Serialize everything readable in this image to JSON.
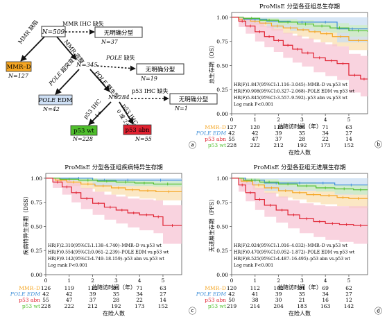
{
  "palette": {
    "mmr_d": "#f5a623",
    "pole": "#3f8fd8",
    "p53abn": "#e02130",
    "p53wt": "#4fbf2c",
    "ci_mmr_d": "#f9dfb0",
    "ci_pole": "#c9def2",
    "ci_p53abn": "#f7c4d4",
    "ci_p53wt": "#cdeec1",
    "edm_fill": "#cfe0f5",
    "mmrd_fill": "#f5a623",
    "wt_fill": "#4fbf2c",
    "abn_fill": "#e02130"
  },
  "panel_letters": {
    "a": "ⓐ",
    "b": "ⓑ",
    "c": "ⓒ",
    "d": "ⓓ"
  },
  "flow": {
    "n509": "N=509",
    "mmr_missing": "MMR IHC 缺失",
    "unclass": "无明确分型",
    "n37": "N=37",
    "mmr_loss": "MMR 缺陷",
    "mmrd_box": "MMR–D",
    "n127": "N=127",
    "mmr_intact": "MMR 完整",
    "n345": "N=345",
    "pole_missing": "POLE 缺失",
    "n19": "N=19",
    "pole_mut": "POLE 超突变",
    "pole_wt": "POLE 野生型",
    "pole_box_a": "POLE",
    "pole_box_b": " EDM",
    "n42": "N=42",
    "n284": "N=284",
    "p53_missing": "p53 IHC 缺失",
    "n1": "N=1",
    "p53_ihc": "p53 IHC",
    "p53_ihc_sub": "0 或 2+",
    "p53_ihc_1": "1+",
    "p53wt_box": "p53 wt",
    "n228": "N=228",
    "p53abn_box": "p53 abn",
    "n55": "N=55"
  },
  "risk_legend": {
    "mmr_d": "MMR–D",
    "pole": "POLE EDM",
    "p53abn": "p53 abn",
    "p53wt": "p53 wt"
  },
  "chart_data": [
    {
      "id": "b",
      "type": "line",
      "title": "ProMisE 分型各亚组总生存期",
      "ylabel": "总生存期（OS）",
      "xlabel": "总随访时间（年）",
      "xticks": [
        0,
        1,
        2,
        3,
        4,
        5
      ],
      "yticks": [
        0.0,
        0.25,
        0.5,
        0.75,
        1.0
      ],
      "xlim": [
        0,
        5.8
      ],
      "ylim": [
        0,
        1.05
      ],
      "series": [
        {
          "name": "MMR–D",
          "key": "mmr_d",
          "x": [
            0,
            0.3,
            0.8,
            1.2,
            1.7,
            2.2,
            2.8,
            3.3,
            3.8,
            4.3,
            5.0,
            5.8
          ],
          "y": [
            1.0,
            0.98,
            0.96,
            0.94,
            0.91,
            0.89,
            0.87,
            0.85,
            0.83,
            0.8,
            0.76,
            0.75
          ],
          "ci_lo": [
            1.0,
            0.95,
            0.92,
            0.9,
            0.86,
            0.83,
            0.8,
            0.77,
            0.74,
            0.7,
            0.66,
            0.64
          ],
          "ci_hi": [
            1.0,
            1.0,
            0.99,
            0.98,
            0.96,
            0.94,
            0.93,
            0.92,
            0.91,
            0.89,
            0.86,
            0.86
          ]
        },
        {
          "name": "POLE EDM",
          "key": "pole",
          "x": [
            0,
            0.5,
            1.5,
            2.5,
            3.5,
            4.5,
            5.8
          ],
          "y": [
            1.0,
            0.98,
            0.96,
            0.95,
            0.95,
            0.88,
            0.88
          ],
          "ci_lo": [
            1.0,
            0.93,
            0.89,
            0.86,
            0.85,
            0.74,
            0.74
          ],
          "ci_hi": [
            1.0,
            1.0,
            1.0,
            1.0,
            1.0,
            1.0,
            1.0
          ]
        },
        {
          "name": "p53 wt",
          "key": "p53wt",
          "x": [
            0,
            0.5,
            1.2,
            2.0,
            2.8,
            3.5,
            4.2,
            5.0,
            5.8
          ],
          "y": [
            1.0,
            0.99,
            0.97,
            0.95,
            0.93,
            0.91,
            0.89,
            0.86,
            0.85
          ],
          "ci_lo": [
            1.0,
            0.97,
            0.94,
            0.92,
            0.89,
            0.86,
            0.84,
            0.8,
            0.79
          ],
          "ci_hi": [
            1.0,
            1.0,
            0.99,
            0.98,
            0.97,
            0.95,
            0.94,
            0.92,
            0.91
          ]
        },
        {
          "name": "p53 abn",
          "key": "p53abn",
          "x": [
            0,
            0.3,
            0.6,
            1.0,
            1.4,
            1.8,
            2.2,
            2.6,
            3.0,
            3.5,
            4.0,
            4.5,
            5.0,
            5.5,
            5.8
          ],
          "y": [
            1.0,
            0.96,
            0.91,
            0.85,
            0.8,
            0.76,
            0.71,
            0.67,
            0.63,
            0.58,
            0.55,
            0.52,
            0.4,
            0.36,
            0.36
          ],
          "ci_lo": [
            1.0,
            0.9,
            0.83,
            0.75,
            0.69,
            0.64,
            0.58,
            0.53,
            0.49,
            0.43,
            0.39,
            0.35,
            0.22,
            0.18,
            0.18
          ],
          "ci_hi": [
            1.0,
            1.0,
            0.99,
            0.95,
            0.91,
            0.88,
            0.84,
            0.81,
            0.78,
            0.74,
            0.72,
            0.7,
            0.62,
            0.6,
            0.6
          ]
        }
      ],
      "annotations": [
        "HR(F)1.847(95%CI:1.116–3.045)–MMR–D vs.p53 wt",
        "HR(F)0.908(95%CI:0.327–2.068)–POLE EDM vs.p53 wt",
        "HR(F)5.845(95%CI:3.557–9.592)–p53 abn vs.p53 wt",
        "Log rank P<0.001"
      ],
      "risk_table": {
        "title": "在险人数",
        "rows": [
          {
            "key": "mmr_d",
            "values": [
              127,
              120,
              113,
              86,
              71,
              63
            ]
          },
          {
            "key": "pole",
            "values": [
              42,
              42,
              39,
              35,
              34,
              27
            ]
          },
          {
            "key": "p53abn",
            "values": [
              55,
              47,
              37,
              28,
              22,
              14
            ]
          },
          {
            "key": "p53wt",
            "values": [
              228,
              222,
              212,
              192,
              173,
              152
            ]
          }
        ]
      }
    },
    {
      "id": "c",
      "type": "line",
      "title": "ProMisE 分型各亚组疾病特异生存期",
      "ylabel": "疾病特异生存期（DSS）",
      "xlabel": "总随访时间（年）",
      "xticks": [
        0,
        1,
        2,
        3,
        4,
        5
      ],
      "yticks": [
        0.0,
        0.25,
        0.5,
        0.75,
        1.0
      ],
      "xlim": [
        0,
        5.8
      ],
      "ylim": [
        0,
        1.05
      ],
      "series": [
        {
          "name": "MMR–D",
          "key": "mmr_d",
          "x": [
            0,
            0.4,
            0.9,
            1.5,
            2.1,
            2.8,
            3.4,
            4.0,
            4.7,
            5.8
          ],
          "y": [
            1.0,
            0.98,
            0.96,
            0.94,
            0.92,
            0.9,
            0.88,
            0.87,
            0.86,
            0.86
          ],
          "ci_lo": [
            1.0,
            0.95,
            0.92,
            0.89,
            0.86,
            0.83,
            0.81,
            0.79,
            0.77,
            0.77
          ],
          "ci_hi": [
            1.0,
            1.0,
            0.99,
            0.98,
            0.97,
            0.96,
            0.95,
            0.94,
            0.94,
            0.94
          ]
        },
        {
          "name": "POLE EDM",
          "key": "pole",
          "x": [
            0,
            0.8,
            2.0,
            3.0,
            4.0,
            5.8
          ],
          "y": [
            1.0,
            1.0,
            0.98,
            0.98,
            0.98,
            0.98
          ],
          "ci_lo": [
            1.0,
            0.97,
            0.92,
            0.92,
            0.92,
            0.92
          ],
          "ci_hi": [
            1.0,
            1.0,
            1.0,
            1.0,
            1.0,
            1.0
          ]
        },
        {
          "name": "p53 wt",
          "key": "p53wt",
          "x": [
            0,
            0.6,
            1.4,
            2.2,
            3.0,
            3.8,
            4.6,
            5.8
          ],
          "y": [
            1.0,
            0.99,
            0.98,
            0.97,
            0.96,
            0.95,
            0.94,
            0.94
          ],
          "ci_lo": [
            1.0,
            0.98,
            0.96,
            0.95,
            0.93,
            0.92,
            0.91,
            0.91
          ],
          "ci_hi": [
            1.0,
            1.0,
            1.0,
            0.99,
            0.98,
            0.98,
            0.97,
            0.97
          ]
        },
        {
          "name": "p53 abn",
          "key": "p53abn",
          "x": [
            0,
            0.3,
            0.7,
            1.1,
            1.5,
            2.0,
            2.5,
            3.0,
            3.5,
            4.0,
            4.6,
            5.0,
            5.8
          ],
          "y": [
            1.0,
            0.96,
            0.91,
            0.85,
            0.79,
            0.74,
            0.7,
            0.67,
            0.64,
            0.62,
            0.6,
            0.51,
            0.51
          ],
          "ci_lo": [
            1.0,
            0.9,
            0.83,
            0.75,
            0.68,
            0.62,
            0.57,
            0.53,
            0.49,
            0.46,
            0.43,
            0.32,
            0.32
          ],
          "ci_hi": [
            1.0,
            1.0,
            0.99,
            0.95,
            0.9,
            0.86,
            0.83,
            0.81,
            0.79,
            0.78,
            0.77,
            0.72,
            0.72
          ]
        }
      ],
      "annotations": [
        "HR(F)2.310(95%CI:1.138–4.740)–MMR–D vs.p53 wt",
        "HR(F)0.554(95%CI:0.061–2.239)–POLE EDM vs.p53 wt",
        "HR(F)9.142(95%CI:4.749–18.159)–p53 abn vs.p53 wt",
        "Log rank P<0.001"
      ],
      "risk_table": {
        "title": "在险人数",
        "rows": [
          {
            "key": "mmr_d",
            "values": [
              126,
              119,
              112,
              85,
              71,
              63
            ]
          },
          {
            "key": "pole",
            "values": [
              42,
              42,
              39,
              35,
              34,
              27
            ]
          },
          {
            "key": "p53abn",
            "values": [
              55,
              47,
              37,
              28,
              22,
              14
            ]
          },
          {
            "key": "p53wt",
            "values": [
              228,
              222,
              212,
              192,
              173,
              152
            ]
          }
        ]
      }
    },
    {
      "id": "d",
      "type": "line",
      "title": "ProMisE 分型各亚组无进展生存期",
      "ylabel": "无进展生存期（PFS）",
      "xlabel": "总随访时间（年）",
      "xticks": [
        0,
        1,
        2,
        3,
        4,
        5
      ],
      "yticks": [
        0.0,
        0.25,
        0.5,
        0.75,
        1.0
      ],
      "xlim": [
        0,
        5.8
      ],
      "ylim": [
        0,
        1.05
      ],
      "series": [
        {
          "name": "MMR–D",
          "key": "mmr_d",
          "x": [
            0,
            0.4,
            0.9,
            1.4,
            2.0,
            2.6,
            3.2,
            3.8,
            4.5,
            5.0,
            5.8
          ],
          "y": [
            1.0,
            0.97,
            0.93,
            0.9,
            0.87,
            0.85,
            0.83,
            0.82,
            0.8,
            0.79,
            0.79
          ],
          "ci_lo": [
            1.0,
            0.93,
            0.88,
            0.84,
            0.8,
            0.78,
            0.75,
            0.73,
            0.71,
            0.69,
            0.69
          ],
          "ci_hi": [
            1.0,
            1.0,
            0.98,
            0.96,
            0.94,
            0.92,
            0.91,
            0.9,
            0.89,
            0.88,
            0.88
          ]
        },
        {
          "name": "POLE EDM",
          "key": "pole",
          "x": [
            0,
            0.6,
            1.4,
            2.4,
            3.4,
            4.4,
            5.8
          ],
          "y": [
            1.0,
            0.98,
            0.95,
            0.95,
            0.95,
            0.93,
            0.93
          ],
          "ci_lo": [
            1.0,
            0.93,
            0.87,
            0.87,
            0.87,
            0.83,
            0.83
          ],
          "ci_hi": [
            1.0,
            1.0,
            1.0,
            1.0,
            1.0,
            1.0,
            1.0
          ]
        },
        {
          "name": "p53 wt",
          "key": "p53wt",
          "x": [
            0,
            0.5,
            1.2,
            2.0,
            2.8,
            3.6,
            4.4,
            5.2,
            5.8
          ],
          "y": [
            1.0,
            0.98,
            0.96,
            0.94,
            0.92,
            0.9,
            0.89,
            0.88,
            0.88
          ],
          "ci_lo": [
            1.0,
            0.96,
            0.93,
            0.91,
            0.88,
            0.86,
            0.84,
            0.83,
            0.83
          ],
          "ci_hi": [
            1.0,
            1.0,
            0.99,
            0.97,
            0.96,
            0.94,
            0.93,
            0.93,
            0.93
          ]
        },
        {
          "name": "p53 abn",
          "key": "p53abn",
          "x": [
            0,
            0.3,
            0.6,
            1.0,
            1.4,
            1.9,
            2.4,
            2.9,
            3.5,
            4.0,
            4.6,
            5.2,
            5.8
          ],
          "y": [
            1.0,
            0.93,
            0.85,
            0.78,
            0.72,
            0.67,
            0.62,
            0.58,
            0.55,
            0.53,
            0.52,
            0.51,
            0.51
          ],
          "ci_lo": [
            1.0,
            0.86,
            0.76,
            0.67,
            0.6,
            0.54,
            0.48,
            0.43,
            0.39,
            0.36,
            0.34,
            0.32,
            0.32
          ],
          "ci_hi": [
            1.0,
            1.0,
            0.96,
            0.9,
            0.85,
            0.81,
            0.77,
            0.74,
            0.72,
            0.71,
            0.71,
            0.71,
            0.71
          ]
        }
      ],
      "annotations": [
        "HR(F)2.024(95%CI:1.016–4.032)–MMR–D vs.p53 wt",
        "HR(F)0.470(95%CI:0.052–1.872)–POLE EDM vs.p53 wt",
        "HR(F)8.525(95%CI:4.487–16.495)–p53 abn vs.p53 wt",
        "Log rank P<0.001"
      ],
      "risk_table": {
        "title": "在险人数",
        "rows": [
          {
            "key": "mmr_d",
            "values": [
              120,
              112,
              102,
              81,
              69,
              62
            ]
          },
          {
            "key": "pole",
            "values": [
              42,
              41,
              39,
              35,
              34,
              27
            ]
          },
          {
            "key": "p53abn",
            "values": [
              50,
              38,
              30,
              21,
              16,
              12
            ]
          },
          {
            "key": "p53wt",
            "values": [
              219,
              214,
              204,
              183,
              163,
              142
            ]
          }
        ]
      }
    }
  ]
}
